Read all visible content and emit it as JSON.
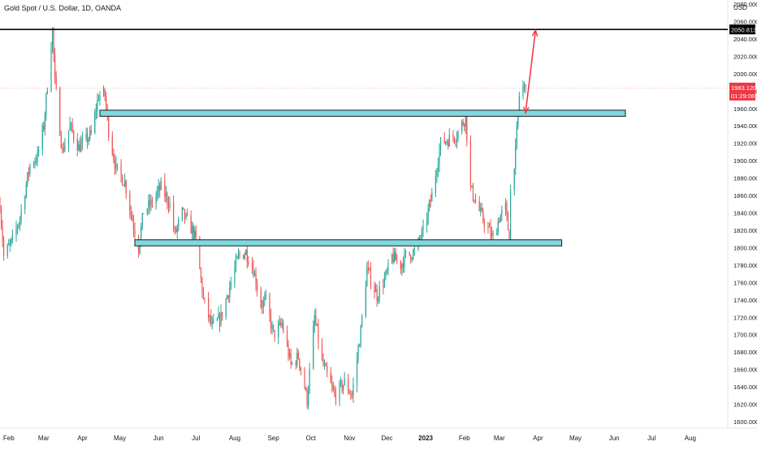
{
  "chart_data": {
    "type": "candlestick",
    "title": "Gold Spot / U.S. Dollar, 1D, OANDA",
    "currency_label": "USD",
    "ylim": [
      1600,
      2080
    ],
    "y_ticks": [
      "2080.000",
      "2060.000",
      "2040.000",
      "2020.000",
      "2000.000",
      "1980.000",
      "1960.000",
      "1940.000",
      "1920.000",
      "1900.000",
      "1880.000",
      "1860.000",
      "1840.000",
      "1820.000",
      "1800.000",
      "1780.000",
      "1760.000",
      "1740.000",
      "1720.000",
      "1700.000",
      "1680.000",
      "1660.000",
      "1640.000",
      "1620.000",
      "1600.000"
    ],
    "x_ticks": [
      "Feb",
      "Mar",
      "Apr",
      "May",
      "Jun",
      "Jul",
      "Aug",
      "Sep",
      "Oct",
      "Nov",
      "Dec",
      "2023",
      "Feb",
      "Mar",
      "Apr",
      "May",
      "Jun",
      "Jul",
      "Aug"
    ],
    "x_range": [
      "2022-01-25",
      "2023-08-31"
    ],
    "price_path": [
      [
        "2022-01-25",
        1850
      ],
      [
        "2022-01-28",
        1790
      ],
      [
        "2022-02-04",
        1808
      ],
      [
        "2022-02-10",
        1835
      ],
      [
        "2022-02-18",
        1895
      ],
      [
        "2022-02-24",
        1905
      ],
      [
        "2022-03-01",
        1940
      ],
      [
        "2022-03-08",
        2050
      ],
      [
        "2022-03-10",
        1990
      ],
      [
        "2022-03-16",
        1910
      ],
      [
        "2022-03-22",
        1940
      ],
      [
        "2022-03-29",
        1915
      ],
      [
        "2022-04-08",
        1930
      ],
      [
        "2022-04-14",
        1975
      ],
      [
        "2022-04-19",
        1975
      ],
      [
        "2022-04-22",
        1935
      ],
      [
        "2022-04-28",
        1890
      ],
      [
        "2022-05-05",
        1875
      ],
      [
        "2022-05-12",
        1825
      ],
      [
        "2022-05-16",
        1800
      ],
      [
        "2022-05-20",
        1842
      ],
      [
        "2022-05-26",
        1850
      ],
      [
        "2022-06-03",
        1870
      ],
      [
        "2022-06-10",
        1850
      ],
      [
        "2022-06-14",
        1815
      ],
      [
        "2022-06-20",
        1840
      ],
      [
        "2022-06-28",
        1820
      ],
      [
        "2022-07-01",
        1808
      ],
      [
        "2022-07-07",
        1740
      ],
      [
        "2022-07-14",
        1708
      ],
      [
        "2022-07-21",
        1720
      ],
      [
        "2022-07-28",
        1755
      ],
      [
        "2022-08-04",
        1790
      ],
      [
        "2022-08-10",
        1795
      ],
      [
        "2022-08-16",
        1775
      ],
      [
        "2022-08-22",
        1735
      ],
      [
        "2022-08-26",
        1738
      ],
      [
        "2022-09-01",
        1700
      ],
      [
        "2022-09-08",
        1712
      ],
      [
        "2022-09-15",
        1665
      ],
      [
        "2022-09-21",
        1675
      ],
      [
        "2022-09-28",
        1625
      ],
      [
        "2022-10-04",
        1720
      ],
      [
        "2022-10-10",
        1668
      ],
      [
        "2022-10-20",
        1630
      ],
      [
        "2022-10-28",
        1645
      ],
      [
        "2022-11-03",
        1630
      ],
      [
        "2022-11-10",
        1705
      ],
      [
        "2022-11-15",
        1775
      ],
      [
        "2022-11-23",
        1745
      ],
      [
        "2022-12-01",
        1770
      ],
      [
        "2022-12-05",
        1790
      ],
      [
        "2022-12-12",
        1780
      ],
      [
        "2022-12-16",
        1790
      ],
      [
        "2022-12-23",
        1795
      ],
      [
        "2022-12-30",
        1818
      ],
      [
        "2023-01-06",
        1860
      ],
      [
        "2023-01-13",
        1920
      ],
      [
        "2023-01-20",
        1925
      ],
      [
        "2023-01-26",
        1930
      ],
      [
        "2023-02-02",
        1950
      ],
      [
        "2023-02-06",
        1868
      ],
      [
        "2023-02-15",
        1835
      ],
      [
        "2023-02-24",
        1810
      ],
      [
        "2023-03-01",
        1835
      ],
      [
        "2023-03-06",
        1845
      ],
      [
        "2023-03-09",
        1810
      ],
      [
        "2023-03-10",
        1865
      ],
      [
        "2023-03-14",
        1910
      ],
      [
        "2023-03-17",
        1975
      ],
      [
        "2023-03-20",
        1985
      ],
      [
        "2023-03-22",
        1983.12
      ]
    ],
    "horizontal_line": {
      "value": 2050.813,
      "color": "#000000"
    },
    "zones": [
      {
        "date_start": "2022-04-15",
        "date_end": "2023-06-10",
        "y_low": 1951,
        "y_high": 1958,
        "color": "#7fd8e0"
      },
      {
        "date_start": "2022-05-13",
        "date_end": "2023-04-20",
        "y_low": 1802,
        "y_high": 1809,
        "color": "#7fd8e0"
      }
    ],
    "projection_arrows": [
      {
        "from": [
          "2023-03-22",
          1955
        ],
        "to": [
          "2023-03-30",
          2050
        ]
      },
      {
        "from": [
          "2023-03-30",
          2050
        ],
        "to": [
          "2023-03-22",
          1955
        ]
      }
    ],
    "current_price": "1983.120",
    "countdown": "01:29:08",
    "line_label": "2050.813",
    "colors": {
      "up": "#26a69a",
      "down": "#ef5350",
      "arrow": "#f23645",
      "price_tag": "#f23645",
      "line_tag": "#000000",
      "axis_text": "#131722"
    }
  }
}
